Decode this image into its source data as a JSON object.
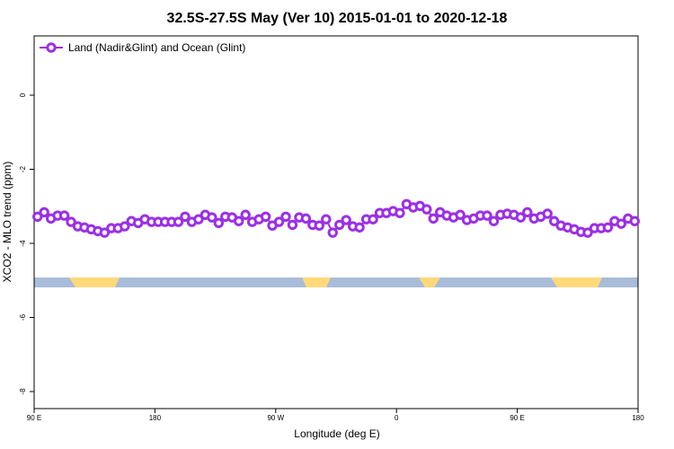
{
  "chart_data": {
    "type": "line",
    "title": "32.5S-27.5S May (Ver 10)   2015-01-01 to 2020-12-18",
    "x_label": "Longitude (deg E)",
    "y_label": "XCO2 - MLO trend (ppm)",
    "x": [
      92.5,
      97.5,
      102.5,
      107.5,
      112.5,
      117.5,
      122.5,
      127.5,
      132.5,
      137.5,
      142.5,
      147.5,
      152.5,
      157.5,
      162.5,
      167.5,
      172.5,
      177.5,
      182.5,
      187.5,
      192.5,
      197.5,
      202.5,
      207.5,
      212.5,
      217.5,
      222.5,
      227.5,
      232.5,
      237.5,
      242.5,
      247.5,
      252.5,
      257.5,
      262.5,
      267.5,
      272.5,
      277.5,
      282.5,
      287.5,
      292.5,
      297.5,
      302.5,
      307.5,
      312.5,
      317.5,
      322.5,
      327.5,
      332.5,
      337.5,
      342.5,
      347.5,
      352.5,
      357.5,
      362.5,
      367.5,
      372.5,
      377.5,
      382.5,
      387.5,
      392.5,
      397.5,
      402.5,
      407.5,
      412.5,
      417.5,
      422.5,
      427.5,
      432.5,
      437.5,
      442.5,
      447.5,
      452.5,
      457.5,
      462.5,
      467.5,
      472.5,
      477.5,
      482.5,
      487.5,
      492.5,
      497.5,
      502.5,
      507.5,
      512.5,
      517.5,
      522.5,
      527.5,
      532.5,
      537.5
    ],
    "series": [
      {
        "name": "Land (Nadir&Glint) and Ocean (Glint)",
        "color": "#9b30e6",
        "values": [
          -3.28,
          -3.16,
          -3.33,
          -3.25,
          -3.25,
          -3.42,
          -3.54,
          -3.57,
          -3.62,
          -3.67,
          -3.71,
          -3.59,
          -3.59,
          -3.54,
          -3.4,
          -3.45,
          -3.35,
          -3.42,
          -3.42,
          -3.42,
          -3.42,
          -3.42,
          -3.28,
          -3.42,
          -3.35,
          -3.23,
          -3.3,
          -3.45,
          -3.28,
          -3.3,
          -3.4,
          -3.23,
          -3.42,
          -3.35,
          -3.28,
          -3.52,
          -3.42,
          -3.28,
          -3.5,
          -3.3,
          -3.33,
          -3.5,
          -3.52,
          -3.35,
          -3.71,
          -3.5,
          -3.37,
          -3.54,
          -3.57,
          -3.35,
          -3.35,
          -3.18,
          -3.18,
          -3.13,
          -3.18,
          -2.94,
          -3.03,
          -2.99,
          -3.08,
          -3.33,
          -3.16,
          -3.25,
          -3.3,
          -3.23,
          -3.37,
          -3.33,
          -3.25,
          -3.25,
          -3.4,
          -3.23,
          -3.2,
          -3.23,
          -3.3,
          -3.16,
          -3.33,
          -3.28,
          -3.2,
          -3.4,
          -3.52,
          -3.57,
          -3.62,
          -3.69,
          -3.71,
          -3.59,
          -3.59,
          -3.57,
          -3.4,
          -3.47,
          -3.33,
          -3.4
        ]
      }
    ],
    "xlim": [
      90,
      540
    ],
    "xticks": [
      {
        "value": 90,
        "label": "90 E"
      },
      180,
      {
        "value": 270,
        "label": "90 W"
      },
      {
        "value": 360,
        "label": "0"
      },
      {
        "value": 450,
        "label": "90 E"
      },
      {
        "value": 540,
        "label": "180"
      }
    ],
    "ylim": [
      -8.46,
      1.6
    ],
    "yticks": [
      0,
      -2,
      -4,
      -6,
      -8
    ],
    "legend_position": "top-left"
  }
}
